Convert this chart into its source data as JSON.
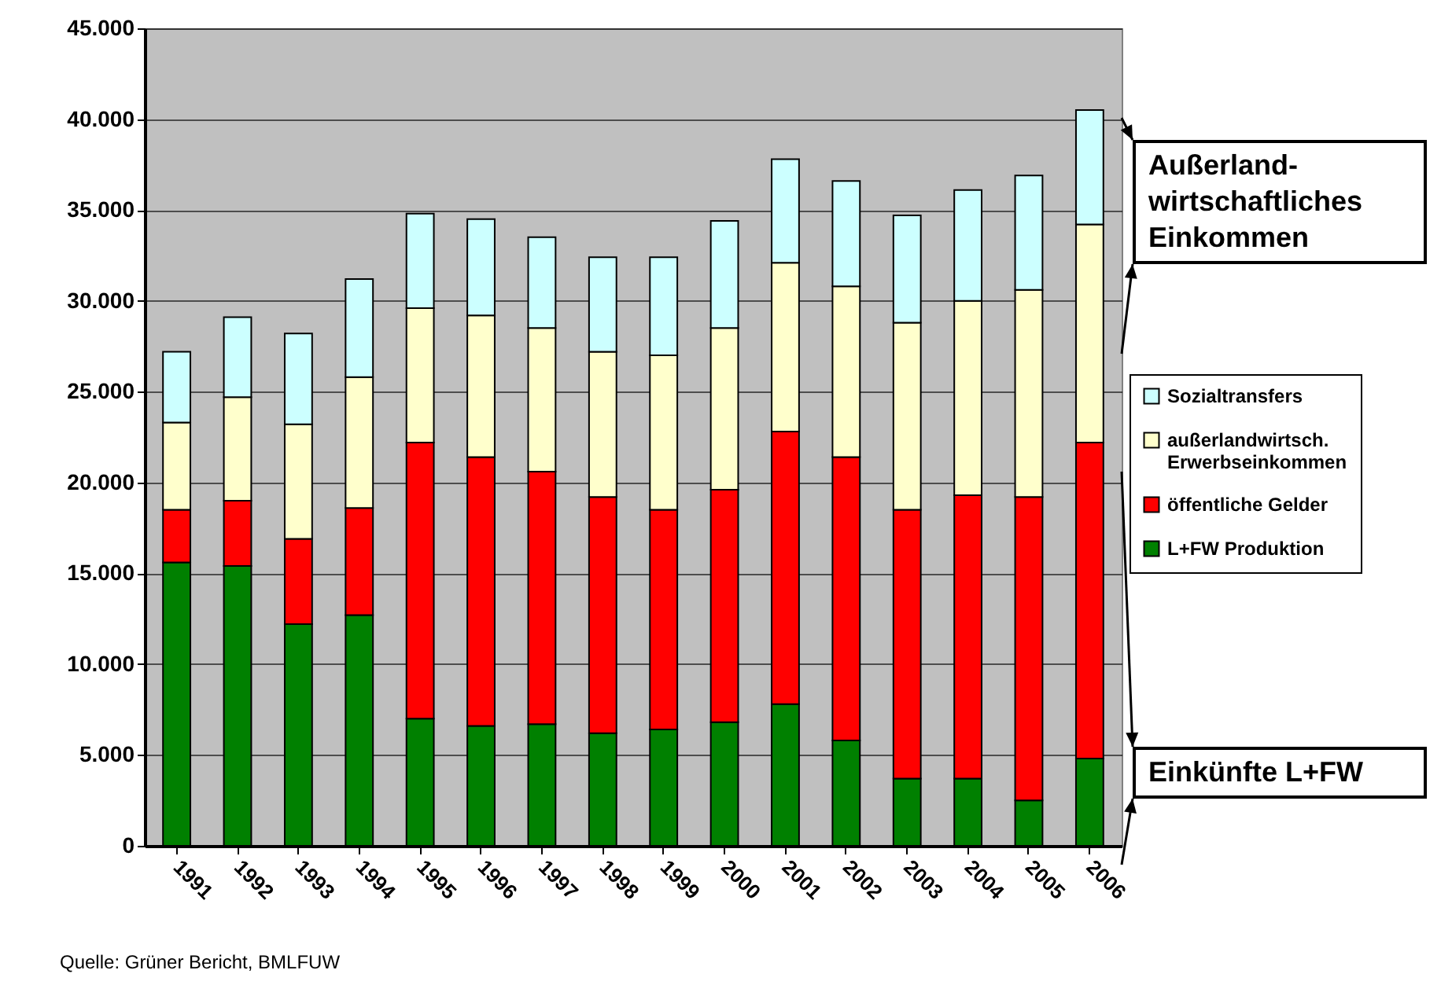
{
  "chart_data": {
    "type": "bar",
    "stacked": true,
    "categories": [
      "1991",
      "1992",
      "1993",
      "1994",
      "1995",
      "1996",
      "1997",
      "1998",
      "1999",
      "2000",
      "2001",
      "2002",
      "2003",
      "2004",
      "2005",
      "2006"
    ],
    "series": [
      {
        "name": "L+FW Produktion",
        "color": "#008000",
        "values": [
          15600,
          15400,
          12200,
          12700,
          7000,
          6600,
          6700,
          6200,
          6400,
          6800,
          7800,
          5800,
          3700,
          3700,
          2500,
          4800
        ]
      },
      {
        "name": "öffentliche Gelder",
        "color": "#ff0000",
        "values": [
          2900,
          3600,
          4700,
          5900,
          15200,
          14800,
          13900,
          13000,
          12100,
          12800,
          15000,
          15600,
          14800,
          15600,
          16700,
          17400
        ]
      },
      {
        "name": "außerlandwirtsch. Erwerbseinkommen",
        "color": "#ffffcc",
        "values": [
          4800,
          5700,
          6300,
          7200,
          7400,
          7800,
          7900,
          8000,
          8500,
          8900,
          9300,
          9400,
          10300,
          10700,
          11400,
          12000
        ]
      },
      {
        "name": "Sozialtransfers",
        "color": "#ccffff",
        "values": [
          3900,
          4400,
          5000,
          5400,
          5200,
          5300,
          5000,
          5200,
          5400,
          5900,
          5700,
          5800,
          5900,
          6100,
          6300,
          6300
        ]
      }
    ],
    "ylim": [
      0,
      45000
    ],
    "yticks": [
      {
        "value": 0,
        "label": "0"
      },
      {
        "value": 5000,
        "label": "5.000"
      },
      {
        "value": 10000,
        "label": "10.000"
      },
      {
        "value": 15000,
        "label": "15.000"
      },
      {
        "value": 20000,
        "label": "20.000"
      },
      {
        "value": 25000,
        "label": "25.000"
      },
      {
        "value": 30000,
        "label": "30.000"
      },
      {
        "value": 35000,
        "label": "35.000"
      },
      {
        "value": 40000,
        "label": "40.000"
      },
      {
        "value": 45000,
        "label": "45.000"
      }
    ],
    "grid": "y",
    "legend": "right",
    "annotations": [
      "Außerland-\nwirtschaftliches\nEinkommen",
      "Einkünfte L+FW",
      "Quelle: Grüner Bericht, BMLFUW"
    ]
  }
}
